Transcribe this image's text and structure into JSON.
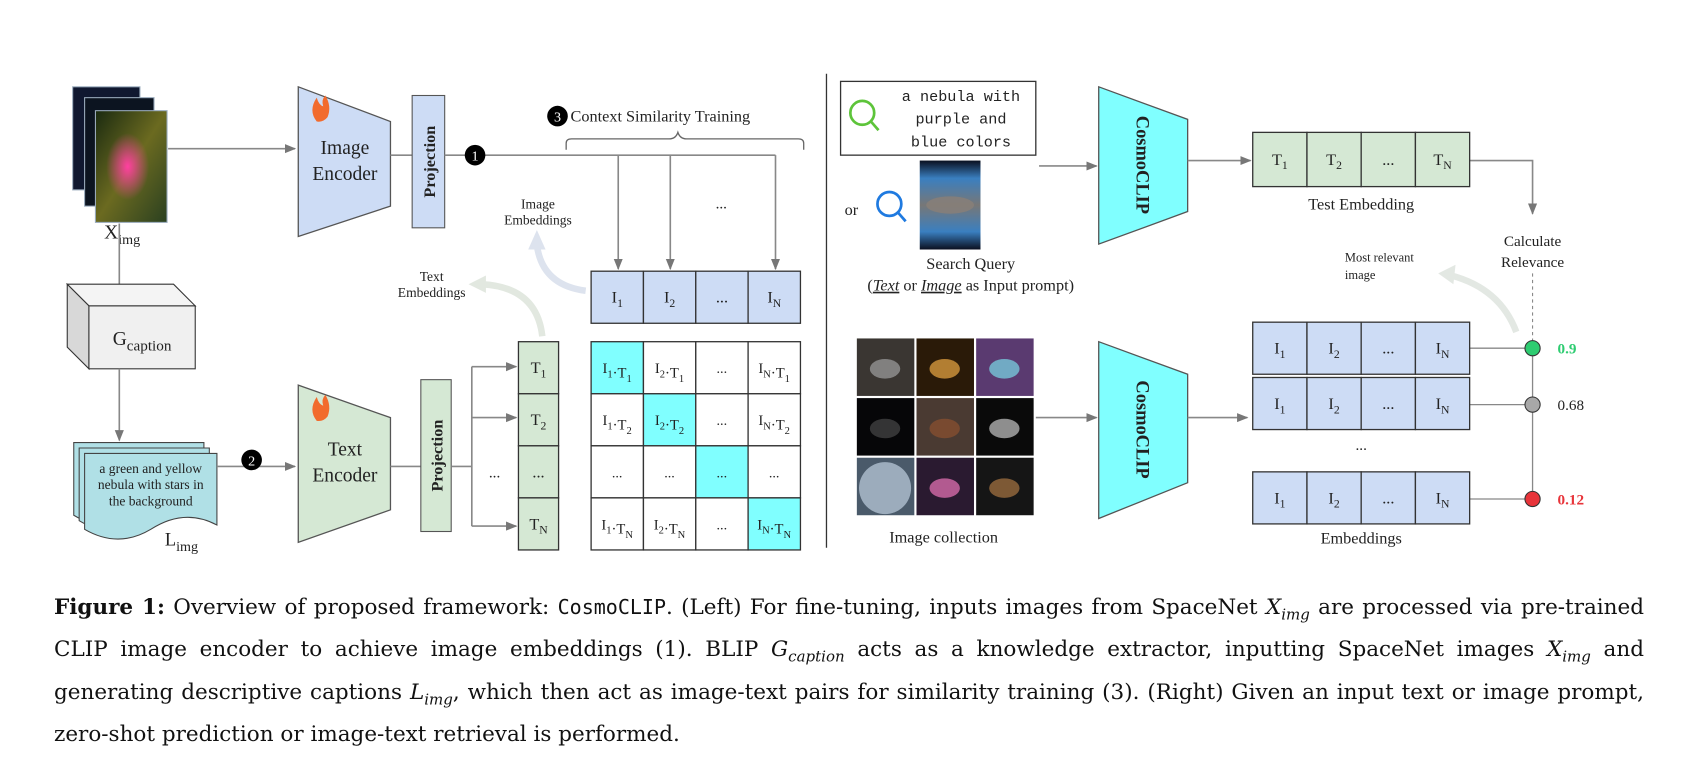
{
  "left": {
    "x_img": {
      "base": "X",
      "sub": "img"
    },
    "g_caption": {
      "base": "G",
      "sub": "caption"
    },
    "l_img": {
      "base": "L",
      "sub": "img"
    },
    "caption_text": [
      "a green and yellow",
      "nebula with stars in",
      "the background"
    ],
    "image_encoder": [
      "Image",
      "Encoder"
    ],
    "text_encoder": [
      "Text",
      "Encoder"
    ],
    "projection": "Projection",
    "step1": "1",
    "step2": "2",
    "step3": "3",
    "context_training": "Context Similarity Training",
    "image_embeddings": [
      "Image",
      "Embeddings"
    ],
    "text_embeddings": [
      "Text",
      "Embeddings"
    ],
    "ellipsis": "...",
    "image_row": [
      {
        "b": "I",
        "s": "1"
      },
      {
        "b": "I",
        "s": "2"
      },
      {
        "b": "..."
      },
      {
        "b": "I",
        "s": "N"
      }
    ],
    "text_col": [
      {
        "b": "T",
        "s": "1"
      },
      {
        "b": "T",
        "s": "2"
      },
      {
        "b": "..."
      },
      {
        "b": "T",
        "s": "N"
      }
    ],
    "matrix": [
      [
        {
          "i": "1",
          "t": "1"
        },
        {
          "i": "2",
          "t": "1"
        },
        {
          "e": "..."
        },
        {
          "i": "N",
          "t": "1"
        }
      ],
      [
        {
          "i": "1",
          "t": "2"
        },
        {
          "i": "2",
          "t": "2"
        },
        {
          "e": "..."
        },
        {
          "i": "N",
          "t": "2"
        }
      ],
      [
        {
          "e": "..."
        },
        {
          "e": "..."
        },
        {
          "e": "..."
        },
        {
          "e": "..."
        }
      ],
      [
        {
          "i": "1",
          "t": "N"
        },
        {
          "i": "2",
          "t": "N"
        },
        {
          "e": "..."
        },
        {
          "i": "N",
          "t": "N"
        }
      ]
    ]
  },
  "right": {
    "query_text": [
      "a nebula with",
      "purple and",
      "blue colors"
    ],
    "or": "or",
    "search_query": "Search Query",
    "prompt_note": {
      "open": "(",
      "text": "Text",
      "or": " or ",
      "image": "Image",
      "rest": " as Input prompt)"
    },
    "model": "CosmoCLIP",
    "test_row": [
      {
        "b": "T",
        "s": "1"
      },
      {
        "b": "T",
        "s": "2"
      },
      {
        "b": "..."
      },
      {
        "b": "T",
        "s": "N"
      }
    ],
    "test_embedding": "Test Embedding",
    "calculate": [
      "Calculate",
      "Relevance"
    ],
    "most_relevant": [
      "Most relevant",
      "image"
    ],
    "image_collection": "Image collection",
    "embedding_row": [
      {
        "b": "I",
        "s": "1"
      },
      {
        "b": "I",
        "s": "2"
      },
      {
        "b": "..."
      },
      {
        "b": "I",
        "s": "N"
      }
    ],
    "embeddings": "Embeddings",
    "ellipsis": "...",
    "scores": [
      {
        "value": "0.9",
        "color": "#2ecc71"
      },
      {
        "value": "0.68",
        "color": "#a8a8a8"
      },
      {
        "value": "0.12",
        "color": "#e8343a"
      }
    ]
  },
  "colors": {
    "image_blue": "#cddcf5",
    "text_green": "#d5e8d4",
    "cyan": "#80ffff",
    "doc_teal": "#b0e0e6"
  },
  "caption": {
    "label": "Figure 1:",
    "s1": " Overview of proposed framework: ",
    "model": "CosmoCLIP",
    "s2": ". (Left) For fine-tuning, inputs images from SpaceNet ",
    "x": "X",
    "x_sub": "img",
    "s3": " are processed via pre-trained CLIP image encoder to achieve image embeddings (1). BLIP ",
    "g": "G",
    "g_sub": "caption",
    "s4": " acts as a knowledge extractor, inputting SpaceNet images ",
    "x2": "X",
    "x2_sub": "img",
    "s5": " and generating descriptive captions ",
    "l": "L",
    "l_sub": "img",
    "s6": ", which then act as image-text pairs for similarity training (3). (Right) Given an input text or image prompt, zero-shot prediction or image-text retrieval is performed."
  }
}
